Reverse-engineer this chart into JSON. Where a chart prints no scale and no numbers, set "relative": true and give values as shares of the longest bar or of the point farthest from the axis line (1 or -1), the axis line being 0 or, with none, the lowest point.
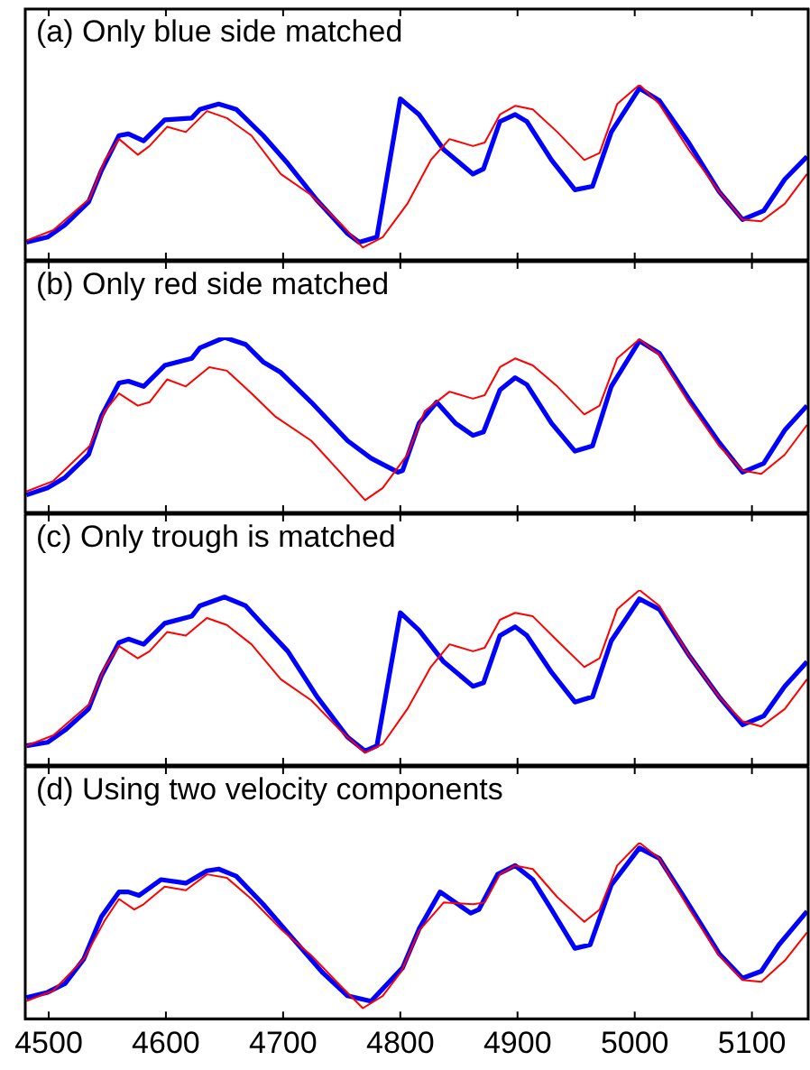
{
  "chart_data": [
    {
      "type": "line",
      "title": "(a) Only blue side matched",
      "relative": true,
      "xlim": [
        4480,
        5148
      ],
      "xticks": [
        4500,
        4600,
        4700,
        4800,
        4900,
        5000,
        5100
      ],
      "tick_labels": false,
      "series": [
        {
          "color": "#ff0000",
          "x": [
            4481,
            4504,
            4535,
            4548,
            4560,
            4576,
            4586,
            4601,
            4617,
            4635,
            4652,
            4673,
            4698,
            4724,
            4750,
            4768,
            4785,
            4806,
            4826,
            4842,
            4862,
            4872,
            4885,
            4898,
            4913,
            4934,
            4957,
            4970,
            4985,
            5004,
            5021,
            5046,
            5072,
            5092,
            5108,
            5128,
            5147
          ],
          "values": [
            0.11,
            0.17,
            0.35,
            0.57,
            0.69,
            0.6,
            0.65,
            0.76,
            0.73,
            0.85,
            0.81,
            0.71,
            0.49,
            0.37,
            0.2,
            0.07,
            0.13,
            0.32,
            0.57,
            0.69,
            0.65,
            0.67,
            0.83,
            0.88,
            0.86,
            0.73,
            0.57,
            0.61,
            0.89,
            1,
            0.89,
            0.63,
            0.39,
            0.23,
            0.22,
            0.32,
            0.49
          ]
        },
        {
          "color": "#0000ff",
          "x": [
            4481,
            4499,
            4514,
            4534,
            4545,
            4560,
            4568,
            4581,
            4599,
            4622,
            4629,
            4645,
            4660,
            4683,
            4704,
            4729,
            4755,
            4765,
            4780,
            4800,
            4816,
            4837,
            4862,
            4871,
            4885,
            4898,
            4908,
            4929,
            4949,
            4964,
            4980,
            5004,
            5021,
            5046,
            5072,
            5092,
            5110,
            5128,
            5147
          ],
          "values": [
            0.1,
            0.13,
            0.2,
            0.33,
            0.51,
            0.71,
            0.72,
            0.68,
            0.8,
            0.81,
            0.86,
            0.89,
            0.86,
            0.71,
            0.55,
            0.34,
            0.15,
            0.1,
            0.13,
            0.92,
            0.83,
            0.63,
            0.49,
            0.52,
            0.79,
            0.83,
            0.79,
            0.57,
            0.4,
            0.42,
            0.73,
            0.98,
            0.91,
            0.67,
            0.39,
            0.23,
            0.28,
            0.46,
            0.59
          ]
        }
      ]
    },
    {
      "type": "line",
      "title": "(b) Only red side matched",
      "relative": true,
      "xlim": [
        4480,
        5148
      ],
      "xticks": [
        4500,
        4600,
        4700,
        4800,
        4900,
        5000,
        5100
      ],
      "tick_labels": false,
      "series": [
        {
          "color": "#ff0000",
          "x": [
            4481,
            4504,
            4535,
            4548,
            4560,
            4576,
            4586,
            4601,
            4617,
            4637,
            4652,
            4673,
            4693,
            4724,
            4750,
            4770,
            4785,
            4806,
            4821,
            4842,
            4862,
            4872,
            4885,
            4898,
            4913,
            4934,
            4957,
            4970,
            4985,
            5004,
            5021,
            5046,
            5072,
            5092,
            5108,
            5128,
            5147
          ],
          "values": [
            0.12,
            0.18,
            0.38,
            0.58,
            0.68,
            0.61,
            0.63,
            0.76,
            0.72,
            0.83,
            0.81,
            0.68,
            0.55,
            0.41,
            0.22,
            0.07,
            0.14,
            0.33,
            0.58,
            0.69,
            0.65,
            0.67,
            0.83,
            0.88,
            0.84,
            0.72,
            0.56,
            0.61,
            0.88,
            0.99,
            0.9,
            0.63,
            0.38,
            0.24,
            0.22,
            0.33,
            0.5
          ]
        },
        {
          "color": "#0000ff",
          "x": [
            4481,
            4499,
            4514,
            4534,
            4545,
            4560,
            4568,
            4581,
            4599,
            4622,
            4629,
            4650,
            4668,
            4683,
            4698,
            4724,
            4755,
            4775,
            4798,
            4802,
            4816,
            4831,
            4847,
            4862,
            4871,
            4885,
            4898,
            4908,
            4929,
            4949,
            4964,
            4980,
            5004,
            5021,
            5046,
            5072,
            5092,
            5110,
            5128,
            5147
          ],
          "values": [
            0.1,
            0.14,
            0.2,
            0.33,
            0.55,
            0.74,
            0.75,
            0.72,
            0.84,
            0.88,
            0.94,
            1,
            0.96,
            0.86,
            0.8,
            0.63,
            0.41,
            0.31,
            0.23,
            0.24,
            0.51,
            0.63,
            0.51,
            0.44,
            0.46,
            0.7,
            0.77,
            0.73,
            0.51,
            0.35,
            0.38,
            0.72,
            0.98,
            0.91,
            0.65,
            0.4,
            0.23,
            0.28,
            0.47,
            0.61
          ]
        }
      ]
    },
    {
      "type": "line",
      "title": "(c) Only trough is matched",
      "relative": true,
      "xlim": [
        4480,
        5148
      ],
      "xticks": [
        4500,
        4600,
        4700,
        4800,
        4900,
        5000,
        5100
      ],
      "tick_labels": false,
      "series": [
        {
          "color": "#ff0000",
          "x": [
            4481,
            4504,
            4535,
            4548,
            4560,
            4576,
            4586,
            4601,
            4617,
            4635,
            4652,
            4673,
            4698,
            4724,
            4750,
            4770,
            4785,
            4806,
            4826,
            4842,
            4862,
            4872,
            4885,
            4898,
            4913,
            4934,
            4957,
            4970,
            4985,
            5004,
            5021,
            5046,
            5072,
            5092,
            5108,
            5128,
            5147
          ],
          "values": [
            0.11,
            0.17,
            0.35,
            0.56,
            0.68,
            0.61,
            0.65,
            0.76,
            0.74,
            0.84,
            0.8,
            0.69,
            0.49,
            0.37,
            0.19,
            0.07,
            0.12,
            0.32,
            0.56,
            0.69,
            0.65,
            0.67,
            0.83,
            0.87,
            0.85,
            0.71,
            0.56,
            0.61,
            0.89,
            1,
            0.91,
            0.63,
            0.39,
            0.25,
            0.22,
            0.32,
            0.49
          ]
        },
        {
          "color": "#0000ff",
          "x": [
            4481,
            4499,
            4514,
            4534,
            4545,
            4560,
            4568,
            4581,
            4599,
            4622,
            4629,
            4650,
            4668,
            4683,
            4704,
            4729,
            4755,
            4770,
            4780,
            4800,
            4816,
            4837,
            4862,
            4871,
            4885,
            4898,
            4908,
            4929,
            4949,
            4964,
            4980,
            5004,
            5021,
            5046,
            5072,
            5092,
            5110,
            5128,
            5147
          ],
          "values": [
            0.11,
            0.13,
            0.2,
            0.32,
            0.51,
            0.7,
            0.72,
            0.69,
            0.81,
            0.85,
            0.91,
            0.96,
            0.91,
            0.8,
            0.65,
            0.39,
            0.16,
            0.08,
            0.11,
            0.87,
            0.77,
            0.59,
            0.45,
            0.47,
            0.74,
            0.79,
            0.74,
            0.53,
            0.36,
            0.39,
            0.71,
            0.95,
            0.89,
            0.63,
            0.39,
            0.23,
            0.28,
            0.45,
            0.59
          ]
        }
      ]
    },
    {
      "type": "line",
      "title": "(d) Using two velocity components",
      "relative": true,
      "xlim": [
        4480,
        5148
      ],
      "xticks": [
        4500,
        4600,
        4700,
        4800,
        4900,
        5000,
        5100
      ],
      "tick_labels": "x",
      "series": [
        {
          "color": "#ff0000",
          "x": [
            4481,
            4504,
            4530,
            4548,
            4560,
            4573,
            4581,
            4599,
            4617,
            4635,
            4652,
            4673,
            4698,
            4724,
            4750,
            4768,
            4785,
            4801,
            4816,
            4837,
            4862,
            4872,
            4885,
            4898,
            4913,
            4934,
            4957,
            4970,
            4985,
            5004,
            5021,
            5046,
            5072,
            5092,
            5108,
            5128,
            5147
          ],
          "values": [
            0.1,
            0.16,
            0.34,
            0.56,
            0.68,
            0.62,
            0.65,
            0.75,
            0.73,
            0.82,
            0.8,
            0.68,
            0.51,
            0.36,
            0.18,
            0.06,
            0.13,
            0.27,
            0.5,
            0.66,
            0.65,
            0.66,
            0.82,
            0.87,
            0.85,
            0.69,
            0.55,
            0.62,
            0.87,
            1,
            0.91,
            0.63,
            0.36,
            0.22,
            0.21,
            0.33,
            0.49
          ]
        },
        {
          "color": "#0000ff",
          "x": [
            4481,
            4499,
            4514,
            4530,
            4545,
            4560,
            4568,
            4577,
            4596,
            4617,
            4635,
            4645,
            4660,
            4683,
            4709,
            4734,
            4755,
            4775,
            4802,
            4816,
            4834,
            4847,
            4860,
            4867,
            4883,
            4898,
            4913,
            4929,
            4949,
            4962,
            4980,
            5004,
            5021,
            5046,
            5072,
            5092,
            5108,
            5123,
            5147
          ],
          "values": [
            0.12,
            0.15,
            0.2,
            0.34,
            0.58,
            0.72,
            0.72,
            0.7,
            0.79,
            0.77,
            0.84,
            0.85,
            0.81,
            0.65,
            0.45,
            0.26,
            0.13,
            0.1,
            0.29,
            0.51,
            0.72,
            0.66,
            0.6,
            0.62,
            0.82,
            0.87,
            0.79,
            0.62,
            0.4,
            0.42,
            0.76,
            0.97,
            0.91,
            0.65,
            0.37,
            0.23,
            0.27,
            0.42,
            0.61
          ]
        }
      ]
    }
  ]
}
